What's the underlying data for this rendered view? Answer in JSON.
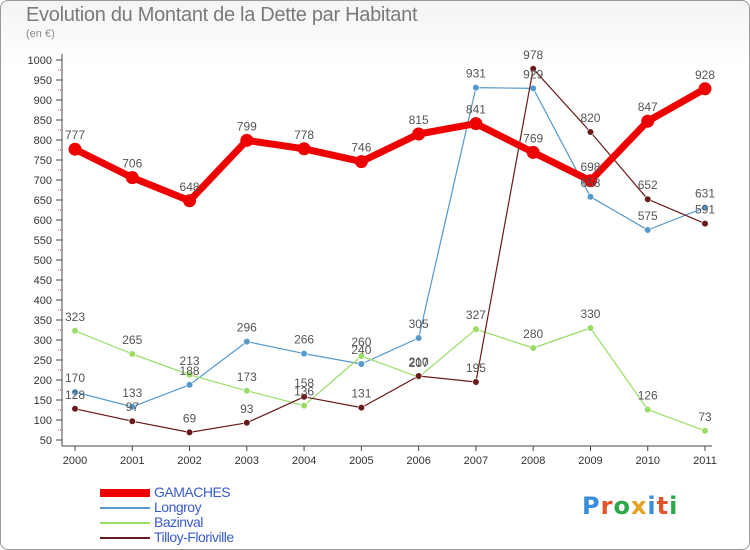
{
  "title": "Evolution du Montant de la Dette par Habitant",
  "subtitle": "(en €)",
  "logo": {
    "text": "Proxiti",
    "letters": [
      "P",
      "r",
      "o",
      "x",
      "i",
      "t",
      "i"
    ]
  },
  "chart_data": {
    "type": "line",
    "title": "Evolution du Montant de la Dette par Habitant",
    "subtitle": "(en €)",
    "x": [
      "2000",
      "2001",
      "2002",
      "2003",
      "2004",
      "2005",
      "2006",
      "2007",
      "2008",
      "2009",
      "2010",
      "2011"
    ],
    "ylim": [
      50,
      1000
    ],
    "yticks": [
      50,
      100,
      150,
      200,
      250,
      300,
      350,
      400,
      450,
      500,
      550,
      600,
      650,
      700,
      750,
      800,
      850,
      900,
      950,
      1000
    ],
    "grid": false,
    "legend_position": "bottom-left",
    "series": [
      {
        "name": "GAMACHES",
        "color": "#ee0000",
        "values": [
          777,
          706,
          648,
          799,
          778,
          746,
          815,
          841,
          769,
          698,
          847,
          928
        ]
      },
      {
        "name": "Longroy",
        "color": "#5599cc",
        "values": [
          170,
          133,
          188,
          296,
          266,
          240,
          305,
          931,
          929,
          658,
          575,
          631
        ]
      },
      {
        "name": "Bazinval",
        "color": "#99dd66",
        "values": [
          323,
          265,
          213,
          173,
          136,
          260,
          207,
          327,
          280,
          330,
          126,
          73
        ]
      },
      {
        "name": "Tilloy-Floriville",
        "color": "#6a1a1a",
        "values": [
          128,
          97,
          69,
          93,
          158,
          131,
          210,
          195,
          978,
          820,
          652,
          591
        ]
      }
    ]
  }
}
